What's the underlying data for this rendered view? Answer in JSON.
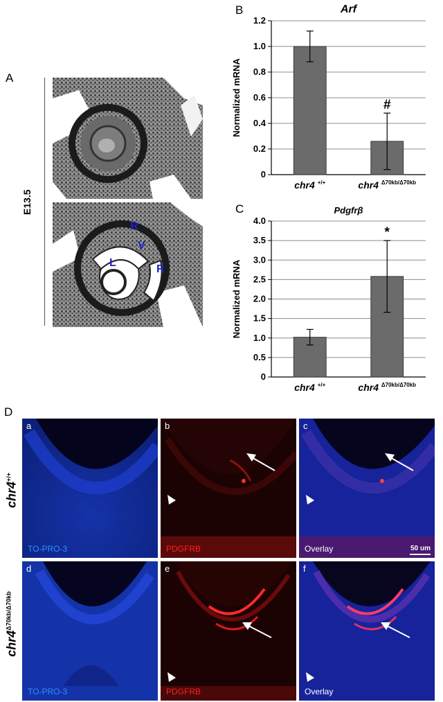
{
  "panelA": {
    "letter": "A",
    "stage": "E13.5",
    "labels": {
      "r1": "R",
      "v": "V",
      "l": "L",
      "r2": "R"
    }
  },
  "chart_data": [
    {
      "panel": "B",
      "type": "bar",
      "title": "Arf",
      "categories": [
        "chr4 +/+",
        "chr4 Δ70kb/Δ70kb"
      ],
      "category_main": [
        "chr4",
        "chr4"
      ],
      "category_sup": [
        "+/+",
        "Δ70kb/Δ70kb"
      ],
      "values": [
        1.0,
        0.26
      ],
      "errors": [
        0.12,
        0.22
      ],
      "annotations": [
        "",
        "#"
      ],
      "ylabel": "Normalized mRNA",
      "ylim": [
        0,
        1.2
      ],
      "yticks": [
        "0",
        "0.2",
        "0.4",
        "0.6",
        "0.8",
        "1.0",
        "1.2"
      ],
      "bar_color": "#6b6b6b"
    },
    {
      "panel": "C",
      "type": "bar",
      "title": "Pdgfrβ",
      "categories": [
        "chr4 +/+",
        "chr4 Δ70kb/Δ70kb"
      ],
      "category_main": [
        "chr4",
        "chr4"
      ],
      "category_sup": [
        "+/+",
        "Δ70kb/Δ70kb"
      ],
      "values": [
        1.02,
        2.58
      ],
      "errors": [
        0.2,
        0.92
      ],
      "annotations": [
        "",
        "*"
      ],
      "ylabel": "Normalized mRNA",
      "ylim": [
        0,
        4.0
      ],
      "yticks": [
        "0",
        "0.5",
        "1.0",
        "1.5",
        "2.0",
        "2.5",
        "3.0",
        "3.5",
        "4.0"
      ],
      "bar_color": "#6b6b6b"
    }
  ],
  "panelD": {
    "letter": "D",
    "row1_label": "chr4",
    "row1_sup": "+/+",
    "row2_label": "chr4",
    "row2_sup": "Δ70kb/Δ70kb",
    "scale": "50 um",
    "colors": {
      "blue": "#2f6fe0",
      "red": "#ff2020",
      "white": "#ffffff"
    },
    "panels": [
      {
        "letter": "a",
        "label": "TO-PRO-3",
        "label_color": "#2f8fff"
      },
      {
        "letter": "b",
        "label": "PDGFRB",
        "label_color": "#ff2020"
      },
      {
        "letter": "c",
        "label": "Overlay",
        "label_color": "#ffffff"
      },
      {
        "letter": "d",
        "label": "TO-PRO-3",
        "label_color": "#2f8fff"
      },
      {
        "letter": "e",
        "label": "PDGFRB",
        "label_color": "#ff2020"
      },
      {
        "letter": "f",
        "label": "Overlay",
        "label_color": "#ffffff"
      }
    ]
  }
}
